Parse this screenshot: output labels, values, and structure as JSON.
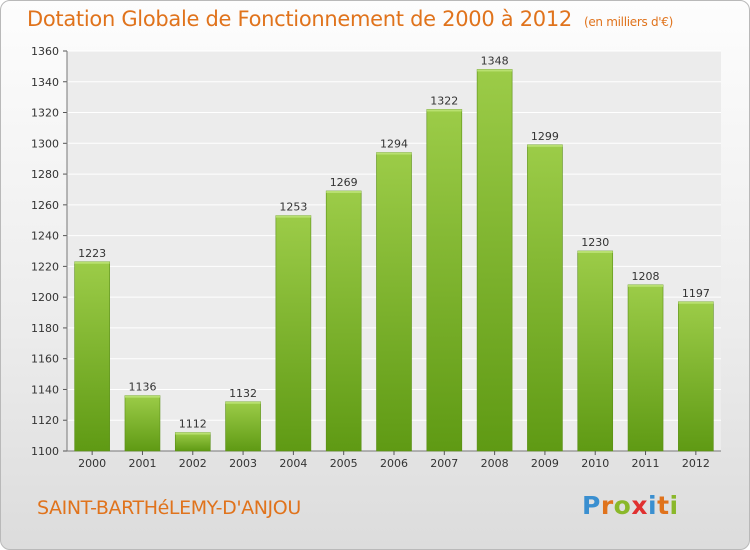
{
  "header": {
    "title": "Dotation Globale de Fonctionnement de 2000 à 2012",
    "subtitle": "(en milliers d'€)"
  },
  "footer": {
    "commune": "SAINT-BARTHéLEMY-D'ANJOU",
    "logo_letters": [
      "P",
      "r",
      "o",
      "x",
      "i",
      "t",
      "i"
    ],
    "logo_colors": [
      "#3a8fd0",
      "#e0731c",
      "#8ab82a",
      "#e03030",
      "#3a8fd0",
      "#e0731c",
      "#8ab82a"
    ]
  },
  "chart_data": {
    "type": "bar",
    "categories": [
      "2000",
      "2001",
      "2002",
      "2003",
      "2004",
      "2005",
      "2006",
      "2007",
      "2008",
      "2009",
      "2010",
      "2011",
      "2012"
    ],
    "values": [
      1223,
      1136,
      1112,
      1132,
      1253,
      1269,
      1294,
      1322,
      1348,
      1299,
      1230,
      1208,
      1197
    ],
    "ylim": [
      1100,
      1360
    ],
    "yticks": [
      1100,
      1120,
      1140,
      1160,
      1180,
      1200,
      1220,
      1240,
      1260,
      1280,
      1300,
      1320,
      1340,
      1360
    ],
    "grid": true,
    "bar_color_top": "#9ccc48",
    "bar_color_bottom": "#5f9a14"
  }
}
